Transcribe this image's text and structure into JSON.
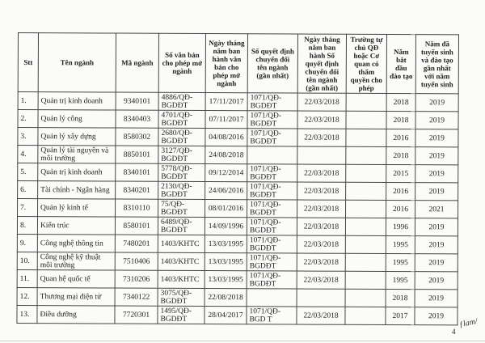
{
  "headers": [
    "Stt",
    "Tên ngành",
    "Mã ngành",
    "Số văn bản cho phép mở ngành",
    "Ngày tháng năm ban hành văn bản cho phép mở ngành",
    "Số quyết định chuyển đổi tên ngành (gần nhất)",
    "Ngày tháng năm ban hành Số quyết định chuyển đổi tên ngành (gần nhất)",
    "Trường tự chủ QĐ hoặc Cơ quan có thẩm quyền cho phép",
    "Năm bắt đầu đào tạo",
    "Năm đã tuyển sinh và đào tạo gần nhất với năm tuyển sinh"
  ],
  "rows": [
    [
      "1.",
      "Quản trị kinh doanh",
      "9340101",
      "4886/QĐ-BGDĐT",
      "17/11/2017",
      "1071/QĐ-BGDĐT",
      "22/03/2018",
      "",
      "2018",
      "2019"
    ],
    [
      "2.",
      "Quản lý công",
      "8340403",
      "4701/QĐ-BGDĐT",
      "07/11/2017",
      "1071/QĐ-BGDĐT",
      "22/03/2018",
      "",
      "2018",
      "2019"
    ],
    [
      "3.",
      "Quản lý xây dựng",
      "8580302",
      "2680/QĐ-BGDĐT",
      "04/08/2016",
      "1071/QĐ-BGDĐT",
      "22/03/2018",
      "",
      "2016",
      "2019"
    ],
    [
      "4.",
      "Quản lý tài nguyên và môi trường",
      "8850101",
      "3127/QĐ-BGDĐT",
      "24/08/2018",
      "",
      "",
      "",
      "2018",
      "2019"
    ],
    [
      "5.",
      "Quản trị kinh doanh",
      "8340101",
      "5778/QĐ-BGDĐT",
      "09/12/2014",
      "1071/QĐ-BGDĐT",
      "22/03/2018",
      "",
      "2015",
      "2019"
    ],
    [
      "6.",
      "Tài chính - Ngân hàng",
      "8340201",
      "2130/QĐ-BGDĐT",
      "24/06/2016",
      "1071/QĐ-BGDĐT",
      "22/03/2018",
      "",
      "2016",
      "2019"
    ],
    [
      "7.",
      "Quản lý kinh tế",
      "8310110",
      "75/QĐ-BGDĐT",
      "08/01/2016",
      "1071/QĐ-BGDĐT",
      "22/03/2018",
      "",
      "2016",
      "2021"
    ],
    [
      "8.",
      "Kiến trúc",
      "8580101",
      "6489/QĐ-BGDĐT",
      "14/09/1996",
      "1071/QĐ-BGDĐT",
      "22/03/2018",
      "",
      "1996",
      "2019"
    ],
    [
      "9.",
      "Công nghệ thông tin",
      "7480201",
      "1403/KHTC",
      "13/03/1995",
      "1071/QĐ-BGDĐT",
      "22/03/2018",
      "",
      "1995",
      "2019"
    ],
    [
      "10.",
      "Công nghệ kỹ thuật môi trường",
      "7510406",
      "1403/KHTC",
      "13/03/1995",
      "1071/QĐ-BGDĐT",
      "22/03/2018",
      "",
      "1995",
      "2019"
    ],
    [
      "11.",
      "Quan hệ quốc tế",
      "7310206",
      "1403/KHTC",
      "13/03/1995",
      "1071/QĐ-BGDĐT",
      "22/03/2018",
      "",
      "1995",
      "2019"
    ],
    [
      "12.",
      "Thương mại điện tử",
      "7340122",
      "3075/QĐ-BGDĐT",
      "22/08/2018",
      "",
      "",
      "",
      "2018",
      "2019"
    ],
    [
      "13.",
      "Điều dưỡng",
      "7720301",
      "1495/QĐ-BGDĐT",
      "28/04/2017",
      "1071/QĐ-BGD T",
      "22/03/2018",
      "",
      "2017",
      "2019"
    ]
  ],
  "page_number": "4",
  "signature": "signature"
}
